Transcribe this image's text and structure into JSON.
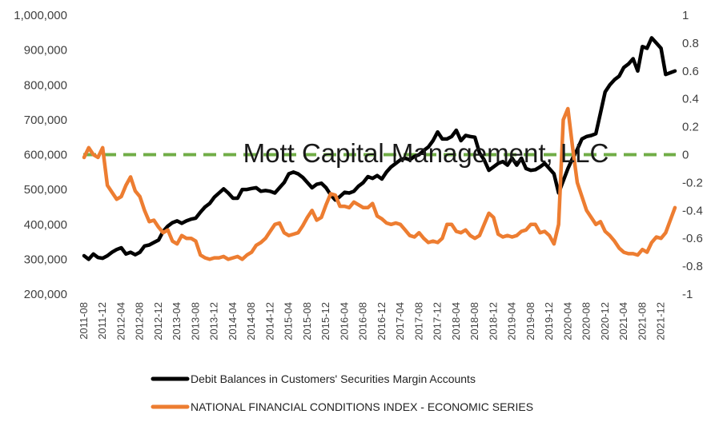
{
  "chart_data": {
    "type": "line",
    "title": "",
    "watermark": "Mott Capital Management, LLC",
    "x": [
      "2011-08",
      "2011-09",
      "2011-10",
      "2011-11",
      "2011-12",
      "2012-01",
      "2012-02",
      "2012-03",
      "2012-04",
      "2012-05",
      "2012-06",
      "2012-07",
      "2012-08",
      "2012-09",
      "2012-10",
      "2012-11",
      "2012-12",
      "2013-01",
      "2013-02",
      "2013-03",
      "2013-04",
      "2013-05",
      "2013-06",
      "2013-07",
      "2013-08",
      "2013-09",
      "2013-10",
      "2013-11",
      "2013-12",
      "2014-01",
      "2014-02",
      "2014-03",
      "2014-04",
      "2014-05",
      "2014-06",
      "2014-07",
      "2014-08",
      "2014-09",
      "2014-10",
      "2014-11",
      "2014-12",
      "2015-01",
      "2015-02",
      "2015-03",
      "2015-04",
      "2015-05",
      "2015-06",
      "2015-07",
      "2015-08",
      "2015-09",
      "2015-10",
      "2015-11",
      "2015-12",
      "2016-01",
      "2016-02",
      "2016-03",
      "2016-04",
      "2016-05",
      "2016-06",
      "2016-07",
      "2016-08",
      "2016-09",
      "2016-10",
      "2016-11",
      "2016-12",
      "2017-01",
      "2017-02",
      "2017-03",
      "2017-04",
      "2017-05",
      "2017-06",
      "2017-07",
      "2017-08",
      "2017-09",
      "2017-10",
      "2017-11",
      "2017-12",
      "2018-01",
      "2018-02",
      "2018-03",
      "2018-04",
      "2018-05",
      "2018-06",
      "2018-07",
      "2018-08",
      "2018-09",
      "2018-10",
      "2018-11",
      "2018-12",
      "2019-01",
      "2019-02",
      "2019-03",
      "2019-04",
      "2019-05",
      "2019-06",
      "2019-07",
      "2019-08",
      "2019-09",
      "2019-10",
      "2019-11",
      "2019-12",
      "2020-01",
      "2020-02",
      "2020-03",
      "2020-04",
      "2020-05",
      "2020-06",
      "2020-07",
      "2020-08",
      "2020-09",
      "2020-10",
      "2020-11",
      "2020-12",
      "2021-01",
      "2021-02",
      "2021-03",
      "2021-04",
      "2021-05",
      "2021-06",
      "2021-07",
      "2021-08",
      "2021-09",
      "2021-10",
      "2021-11",
      "2021-12",
      "2022-01",
      "2022-02",
      "2022-03"
    ],
    "xtick_labels": [
      "2011-08",
      "2011-12",
      "2012-04",
      "2012-08",
      "2012-12",
      "2013-04",
      "2013-08",
      "2013-12",
      "2014-04",
      "2014-08",
      "2014-12",
      "2015-04",
      "2015-08",
      "2015-12",
      "2016-04",
      "2016-08",
      "2016-12",
      "2017-04",
      "2017-08",
      "2017-12",
      "2018-04",
      "2018-08",
      "2018-12",
      "2019-04",
      "2019-08",
      "2019-12",
      "2020-04",
      "2020-08",
      "2020-12",
      "2021-04",
      "2021-08",
      "2021-12"
    ],
    "y_left_ticks": [
      "1,000,000",
      "900,000",
      "800,000",
      "700,000",
      "600,000",
      "500,000",
      "400,000",
      "300,000",
      "200,000"
    ],
    "y_right_ticks": [
      "1",
      "0.8",
      "0.6",
      "0.4",
      "0.2",
      "0",
      "-0.2",
      "-0.4",
      "-0.6",
      "-0.8",
      "-1"
    ],
    "ylim_left": [
      200000,
      1000000
    ],
    "ylim_right": [
      -1,
      1
    ],
    "reference_line": {
      "axis": "right",
      "value": 0,
      "color": "#70ad47",
      "style": "dashed"
    },
    "legend_position": "bottom",
    "grid": false,
    "series": [
      {
        "name": "Debit Balances in Customers' Securities Margin Accounts",
        "axis": "left",
        "color": "#000000",
        "values": [
          310000,
          300000,
          315000,
          305000,
          303000,
          310000,
          320000,
          328000,
          333000,
          315000,
          320000,
          313000,
          320000,
          338000,
          341000,
          348000,
          355000,
          380000,
          395000,
          405000,
          410000,
          403000,
          410000,
          415000,
          418000,
          435000,
          450000,
          460000,
          478000,
          490000,
          502000,
          490000,
          475000,
          475000,
          500000,
          500000,
          503000,
          505000,
          495000,
          497000,
          495000,
          490000,
          505000,
          520000,
          545000,
          550000,
          545000,
          535000,
          520000,
          505000,
          515000,
          518000,
          505000,
          485000,
          470000,
          480000,
          492000,
          490000,
          495000,
          510000,
          520000,
          537000,
          532000,
          540000,
          530000,
          550000,
          565000,
          575000,
          585000,
          590000,
          585000,
          595000,
          600000,
          612000,
          622000,
          640000,
          665000,
          645000,
          645000,
          652000,
          670000,
          640000,
          655000,
          652000,
          650000,
          605000,
          585000,
          555000,
          565000,
          575000,
          580000,
          570000,
          590000,
          570000,
          590000,
          560000,
          555000,
          557000,
          565000,
          575000,
          560000,
          545000,
          490000,
          525000,
          560000,
          590000,
          615000,
          645000,
          652000,
          655000,
          660000,
          720000,
          780000,
          800000,
          815000,
          825000,
          850000,
          860000,
          875000,
          840000,
          910000,
          905000,
          935000,
          920000,
          905000,
          830000,
          835000,
          840000
        ]
      },
      {
        "name": "NATIONAL FINANCIAL CONDITIONS INDEX - ECONOMIC SERIES",
        "axis": "right",
        "color": "#ed7d31",
        "values": [
          -0.02,
          0.05,
          0.0,
          -0.02,
          0.05,
          -0.22,
          -0.27,
          -0.32,
          -0.3,
          -0.22,
          -0.16,
          -0.26,
          -0.3,
          -0.4,
          -0.48,
          -0.47,
          -0.52,
          -0.56,
          -0.54,
          -0.62,
          -0.64,
          -0.58,
          -0.6,
          -0.6,
          -0.62,
          -0.72,
          -0.74,
          -0.75,
          -0.74,
          -0.74,
          -0.73,
          -0.75,
          -0.74,
          -0.73,
          -0.75,
          -0.72,
          -0.7,
          -0.65,
          -0.63,
          -0.6,
          -0.55,
          -0.5,
          -0.49,
          -0.56,
          -0.58,
          -0.57,
          -0.56,
          -0.51,
          -0.45,
          -0.4,
          -0.47,
          -0.45,
          -0.36,
          -0.28,
          -0.29,
          -0.37,
          -0.37,
          -0.38,
          -0.34,
          -0.36,
          -0.38,
          -0.38,
          -0.35,
          -0.44,
          -0.46,
          -0.49,
          -0.5,
          -0.49,
          -0.5,
          -0.54,
          -0.58,
          -0.59,
          -0.56,
          -0.6,
          -0.63,
          -0.62,
          -0.63,
          -0.6,
          -0.5,
          -0.5,
          -0.55,
          -0.56,
          -0.54,
          -0.58,
          -0.6,
          -0.58,
          -0.5,
          -0.42,
          -0.45,
          -0.57,
          -0.59,
          -0.58,
          -0.59,
          -0.58,
          -0.55,
          -0.54,
          -0.5,
          -0.5,
          -0.56,
          -0.55,
          -0.58,
          -0.64,
          -0.5,
          0.25,
          0.33,
          0.05,
          -0.2,
          -0.3,
          -0.4,
          -0.45,
          -0.5,
          -0.48,
          -0.55,
          -0.58,
          -0.62,
          -0.67,
          -0.7,
          -0.71,
          -0.71,
          -0.72,
          -0.68,
          -0.7,
          -0.63,
          -0.59,
          -0.6,
          -0.56,
          -0.47,
          -0.38
        ]
      }
    ]
  }
}
